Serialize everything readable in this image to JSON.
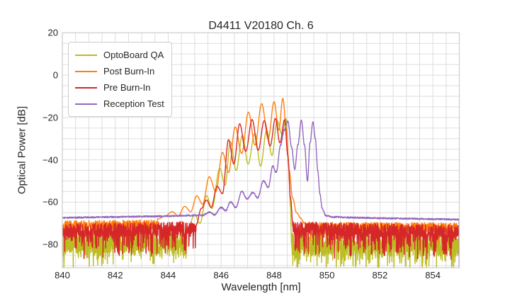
{
  "title": "D4411 V20180 Ch. 6",
  "chart_data": {
    "type": "line",
    "title": "D4411 V20180 Ch. 6",
    "xlabel": "Wavelength [nm]",
    "ylabel": "Optical Power [dB]",
    "xlim": [
      840,
      855
    ],
    "ylim": [
      -91,
      20
    ],
    "x_ticks": [
      {
        "value": 840,
        "label": "840"
      },
      {
        "value": 842,
        "label": "842"
      },
      {
        "value": 844,
        "label": "844"
      },
      {
        "value": 846,
        "label": "846"
      },
      {
        "value": 848,
        "label": "848"
      },
      {
        "value": 850,
        "label": "850"
      },
      {
        "value": 852,
        "label": "852"
      },
      {
        "value": 854,
        "label": "854"
      }
    ],
    "y_ticks": [
      {
        "value": 20,
        "label": "20"
      },
      {
        "value": 0,
        "label": "0"
      },
      {
        "value": -20,
        "label": "−20"
      },
      {
        "value": -40,
        "label": "−40"
      },
      {
        "value": -60,
        "label": "−60"
      },
      {
        "value": -80,
        "label": "−80"
      }
    ],
    "grid": {
      "on": true,
      "color": "#dddddd",
      "x_step_nm": 0.5,
      "y_step_db": 5
    },
    "spine_color": "#cccccc",
    "text_color": "#262626",
    "background": "#ffffff",
    "legend": {
      "position": "upper-left"
    },
    "series": [
      {
        "name": "OptoBoard QA",
        "color": "#bcbd22",
        "mode": "max",
        "envelope": [
          [
            844.7,
            -74
          ],
          [
            845.0,
            -66
          ],
          [
            845.2,
            -70
          ],
          [
            845.45,
            -57
          ],
          [
            845.65,
            -63
          ],
          [
            845.95,
            -44
          ],
          [
            846.15,
            -52
          ],
          [
            846.35,
            -31.5
          ],
          [
            846.57,
            -45
          ],
          [
            846.8,
            -28.5
          ],
          [
            847.02,
            -42
          ],
          [
            847.27,
            -27.5
          ],
          [
            847.49,
            -43
          ],
          [
            847.72,
            -26
          ],
          [
            847.92,
            -38
          ],
          [
            848.12,
            -21.5
          ],
          [
            848.3,
            -28
          ],
          [
            848.45,
            -20.5
          ],
          [
            848.55,
            -42
          ],
          [
            848.62,
            -62
          ],
          [
            848.66,
            -80
          ]
        ],
        "noise": {
          "base": [
            [
              840,
              -79
            ],
            [
              845,
              -78
            ],
            [
              848.6,
              -80
            ],
            [
              855,
              -80
            ]
          ],
          "jitter": 5.5,
          "spike_prob": 0.28,
          "spike_extra": 9
        }
      },
      {
        "name": "Post Burn-In",
        "color": "#ff7f0e",
        "mode": "max",
        "envelope": [
          [
            843.6,
            -68
          ],
          [
            843.9,
            -66.5
          ],
          [
            844.15,
            -64.5
          ],
          [
            844.38,
            -66.5
          ],
          [
            844.62,
            -62
          ],
          [
            844.85,
            -64.5
          ],
          [
            845.08,
            -57
          ],
          [
            845.3,
            -61
          ],
          [
            845.55,
            -48
          ],
          [
            845.8,
            -55
          ],
          [
            846.05,
            -36.5
          ],
          [
            846.28,
            -46
          ],
          [
            846.53,
            -24.5
          ],
          [
            846.78,
            -37
          ],
          [
            847.03,
            -17.5
          ],
          [
            847.28,
            -33
          ],
          [
            847.53,
            -13.5
          ],
          [
            847.78,
            -30
          ],
          [
            848.0,
            -12.5
          ],
          [
            848.18,
            -26
          ],
          [
            848.33,
            -11
          ],
          [
            848.47,
            -26
          ],
          [
            848.57,
            -45
          ],
          [
            848.7,
            -58
          ],
          [
            848.85,
            -65
          ],
          [
            849.0,
            -67.5
          ],
          [
            849.15,
            -70
          ]
        ],
        "noise": {
          "base": [
            [
              840,
              -71
            ],
            [
              844,
              -70.5
            ],
            [
              846,
              -70
            ],
            [
              849,
              -71.5
            ],
            [
              855,
              -72
            ]
          ],
          "jitter": 2.2,
          "spike_prob": 0.1,
          "spike_extra": 6
        }
      },
      {
        "name": "Pre Burn-In",
        "color": "#d62728",
        "mode": "max",
        "envelope": [
          [
            845.05,
            -71
          ],
          [
            845.25,
            -63
          ],
          [
            845.45,
            -59
          ],
          [
            845.62,
            -62.5
          ],
          [
            845.85,
            -52.5
          ],
          [
            846.05,
            -56
          ],
          [
            846.28,
            -30.5
          ],
          [
            846.48,
            -42
          ],
          [
            846.7,
            -23
          ],
          [
            846.93,
            -36
          ],
          [
            847.17,
            -21
          ],
          [
            847.4,
            -35.5
          ],
          [
            847.63,
            -21.5
          ],
          [
            847.85,
            -33.5
          ],
          [
            848.05,
            -20.5
          ],
          [
            848.22,
            -32
          ],
          [
            848.4,
            -21
          ],
          [
            848.52,
            -38
          ],
          [
            848.62,
            -58
          ],
          [
            848.72,
            -72
          ]
        ],
        "noise": {
          "base": [
            [
              840,
              -73.5
            ],
            [
              844,
              -72.5
            ],
            [
              846,
              -72
            ],
            [
              848.8,
              -72.5
            ],
            [
              851,
              -73
            ],
            [
              855,
              -74
            ]
          ],
          "jitter": 3.2,
          "spike_prob": 0.3,
          "spike_extra": 11
        }
      },
      {
        "name": "Reception Test",
        "color": "#9467bd",
        "mode": "add",
        "envelope": [
          [
            840.0,
            -67.4
          ],
          [
            841.0,
            -67.2
          ],
          [
            842.0,
            -67.0
          ],
          [
            843.0,
            -66.8
          ],
          [
            844.0,
            -66.6
          ],
          [
            844.8,
            -66.3
          ],
          [
            845.3,
            -66.2
          ],
          [
            845.55,
            -64.8
          ],
          [
            845.75,
            -66.0
          ],
          [
            846.0,
            -62.5
          ],
          [
            846.18,
            -64
          ],
          [
            846.35,
            -59.8
          ],
          [
            846.55,
            -62.5
          ],
          [
            846.78,
            -55
          ],
          [
            846.98,
            -58.5
          ],
          [
            847.2,
            -55.5
          ],
          [
            847.38,
            -58
          ],
          [
            847.6,
            -50
          ],
          [
            847.78,
            -53
          ],
          [
            847.95,
            -43
          ],
          [
            848.08,
            -46
          ],
          [
            848.25,
            -33
          ],
          [
            848.38,
            -26
          ],
          [
            848.52,
            -21.8
          ],
          [
            848.66,
            -34
          ],
          [
            848.78,
            -44.5
          ],
          [
            848.9,
            -33
          ],
          [
            849.03,
            -21.3
          ],
          [
            849.15,
            -33
          ],
          [
            849.26,
            -50
          ],
          [
            849.36,
            -32
          ],
          [
            849.47,
            -21.8
          ],
          [
            849.56,
            -30
          ],
          [
            849.65,
            -45
          ],
          [
            849.73,
            -56
          ],
          [
            849.82,
            -63
          ],
          [
            849.95,
            -66.3
          ],
          [
            850.2,
            -67
          ],
          [
            851.0,
            -67.3
          ],
          [
            852.0,
            -67.6
          ],
          [
            853.0,
            -67.8
          ],
          [
            854.0,
            -68.0
          ],
          [
            855.0,
            -68.2
          ]
        ],
        "noise": {
          "base": [
            [
              840,
              0
            ],
            [
              855,
              0
            ]
          ],
          "jitter": 0.35,
          "spike_prob": 0,
          "spike_extra": 0
        }
      }
    ]
  }
}
